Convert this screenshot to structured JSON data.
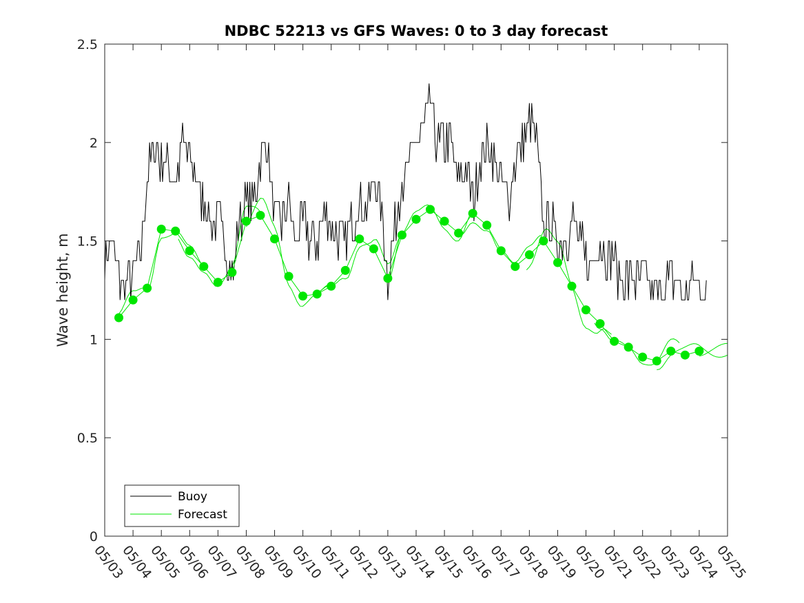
{
  "chart_data": {
    "type": "line",
    "title": "NDBC 52213 vs GFS Waves: 0 to 3 day forecast",
    "xlabel": "",
    "ylabel": "Wave height, m",
    "x_tick_labels": [
      "05/03",
      "05/04",
      "05/05",
      "05/06",
      "05/07",
      "05/08",
      "05/09",
      "05/10",
      "05/11",
      "05/12",
      "05/13",
      "05/14",
      "05/15",
      "05/16",
      "05/17",
      "05/18",
      "05/19",
      "05/20",
      "05/21",
      "05/22",
      "05/23",
      "05/24",
      "05/25"
    ],
    "y_ticks": [
      0,
      0.5,
      1,
      1.5,
      2,
      2.5
    ],
    "y_tick_labels": [
      "0",
      "0.5",
      "1",
      "1.5",
      "2",
      "2.5"
    ],
    "ylim": [
      0,
      2.5
    ],
    "grid": false,
    "legend": {
      "position": "bottom-left",
      "entries": [
        {
          "label": "Buoy",
          "color": "#000000"
        },
        {
          "label": "Forecast",
          "color": "#00e600"
        }
      ]
    },
    "series": [
      {
        "name": "Buoy",
        "color": "#000000",
        "x": [
          "05/03 00:00",
          "05/03 06:00",
          "05/03 12:00",
          "05/03 18:00",
          "05/04 00:00",
          "05/04 06:00",
          "05/04 12:00",
          "05/04 18:00",
          "05/05 00:00",
          "05/05 06:00",
          "05/05 12:00",
          "05/05 18:00",
          "05/06 00:00",
          "05/06 06:00",
          "05/06 12:00",
          "05/06 18:00",
          "05/07 00:00",
          "05/07 06:00",
          "05/07 12:00",
          "05/07 18:00",
          "05/08 00:00",
          "05/08 06:00",
          "05/08 12:00",
          "05/08 18:00",
          "05/09 00:00",
          "05/09 06:00",
          "05/09 12:00",
          "05/09 18:00",
          "05/10 00:00",
          "05/10 06:00",
          "05/10 12:00",
          "05/10 18:00",
          "05/11 00:00",
          "05/11 06:00",
          "05/11 12:00",
          "05/11 18:00",
          "05/12 00:00",
          "05/12 06:00",
          "05/12 12:00",
          "05/12 18:00",
          "05/13 00:00",
          "05/13 06:00",
          "05/13 12:00",
          "05/13 18:00",
          "05/14 00:00",
          "05/14 06:00",
          "05/14 12:00",
          "05/14 18:00",
          "05/15 00:00",
          "05/15 06:00",
          "05/15 12:00",
          "05/15 18:00",
          "05/16 00:00",
          "05/16 06:00",
          "05/16 12:00",
          "05/16 18:00",
          "05/17 00:00",
          "05/17 06:00",
          "05/17 12:00",
          "05/17 18:00",
          "05/18 00:00",
          "05/18 06:00",
          "05/18 12:00",
          "05/18 18:00",
          "05/19 00:00",
          "05/19 06:00",
          "05/19 12:00",
          "05/19 18:00",
          "05/20 00:00",
          "05/20 06:00",
          "05/20 12:00",
          "05/20 18:00",
          "05/21 00:00",
          "05/21 06:00",
          "05/21 12:00",
          "05/21 18:00",
          "05/22 00:00",
          "05/22 06:00",
          "05/22 12:00",
          "05/22 18:00",
          "05/23 00:00",
          "05/23 06:00",
          "05/23 12:00",
          "05/23 18:00",
          "05/24 00:00",
          "05/24 06:00"
        ],
        "values": [
          1.4,
          1.5,
          1.3,
          1.3,
          1.3,
          1.4,
          1.8,
          2.0,
          1.9,
          1.9,
          1.8,
          2.0,
          1.9,
          1.8,
          1.7,
          1.6,
          1.6,
          1.5,
          1.3,
          1.6,
          1.7,
          1.7,
          1.9,
          2.0,
          1.6,
          1.6,
          1.7,
          1.5,
          1.6,
          1.5,
          1.5,
          1.6,
          1.6,
          1.5,
          1.5,
          1.6,
          1.7,
          1.7,
          1.8,
          1.7,
          1.3,
          1.6,
          1.8,
          1.9,
          2.0,
          2.1,
          2.2,
          2.0,
          2.0,
          2.0,
          1.8,
          1.9,
          1.7,
          1.9,
          2.0,
          1.9,
          1.8,
          1.7,
          1.9,
          2.0,
          2.1,
          2.0,
          1.6,
          1.6,
          1.5,
          1.5,
          1.6,
          1.5,
          1.4,
          1.4,
          1.5,
          1.4,
          1.4,
          1.3,
          1.3,
          1.3,
          1.3,
          1.3,
          1.2,
          1.3,
          1.3,
          1.3,
          1.2,
          1.3,
          1.3,
          1.2
        ]
      },
      {
        "name": "Forecast",
        "color": "#00e600",
        "x": [
          "05/03 12:00",
          "05/04 00:00",
          "05/04 12:00",
          "05/05 00:00",
          "05/05 12:00",
          "05/06 00:00",
          "05/06 12:00",
          "05/07 00:00",
          "05/07 12:00",
          "05/08 00:00",
          "05/08 12:00",
          "05/09 00:00",
          "05/09 12:00",
          "05/10 00:00",
          "05/10 12:00",
          "05/11 00:00",
          "05/11 12:00",
          "05/12 00:00",
          "05/12 12:00",
          "05/13 00:00",
          "05/13 12:00",
          "05/14 00:00",
          "05/14 12:00",
          "05/15 00:00",
          "05/15 12:00",
          "05/16 00:00",
          "05/16 12:00",
          "05/17 00:00",
          "05/17 12:00",
          "05/18 00:00",
          "05/18 12:00",
          "05/19 00:00",
          "05/19 12:00",
          "05/20 00:00",
          "05/20 12:00",
          "05/21 00:00",
          "05/21 12:00",
          "05/22 00:00",
          "05/22 12:00",
          "05/23 00:00",
          "05/23 12:00",
          "05/24 00:00"
        ],
        "values": [
          1.11,
          1.2,
          1.26,
          1.56,
          1.55,
          1.45,
          1.37,
          1.29,
          1.34,
          1.6,
          1.63,
          1.51,
          1.32,
          1.22,
          1.23,
          1.27,
          1.35,
          1.51,
          1.46,
          1.31,
          1.53,
          1.61,
          1.66,
          1.6,
          1.54,
          1.64,
          1.58,
          1.45,
          1.37,
          1.43,
          1.5,
          1.39,
          1.27,
          1.15,
          1.08,
          0.99,
          0.96,
          0.91,
          0.89,
          0.94,
          0.92,
          0.94
        ]
      }
    ]
  }
}
